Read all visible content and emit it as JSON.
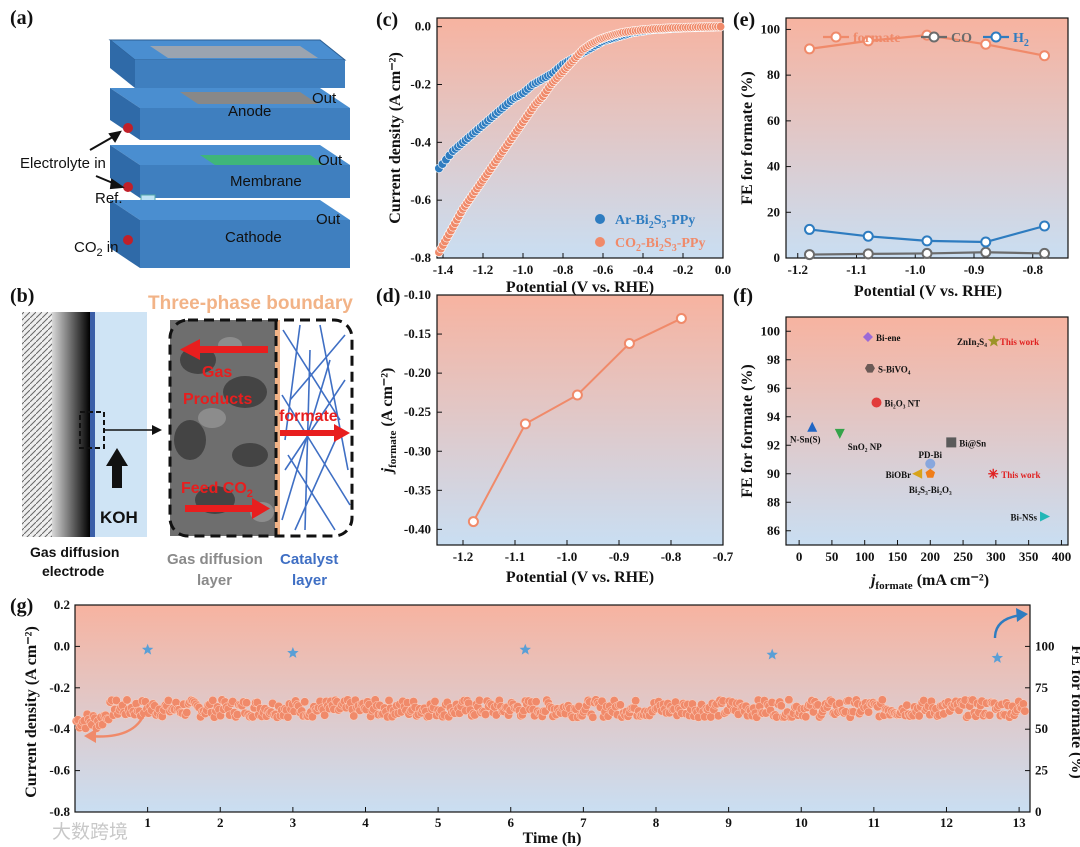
{
  "panel_labels": {
    "a": "(a)",
    "b": "(b)",
    "c": "(c)",
    "d": "(d)",
    "e": "(e)",
    "f": "(f)",
    "g": "(g)"
  },
  "schematic_a": {
    "anode": "Anode",
    "membrane": "Membrane",
    "cathode": "Cathode",
    "out1": "Out",
    "out2": "Out",
    "out3": "Out",
    "electrolyte_in": "Electrolyte in",
    "ref": "Ref.",
    "co2_in_main": "CO",
    "co2_in_sub": "2",
    "co2_in_tail": " in"
  },
  "schematic_b": {
    "title": "Three-phase boundary",
    "gas_products_1": "Gas",
    "gas_products_2": "Products",
    "formate": "formate",
    "feed_co2": "Feed CO",
    "feed_co2_sub": "2",
    "koh": "KOH",
    "gde_1": "Gas diffusion",
    "gde_2": "electrode",
    "gdl_1": "Gas diffusion",
    "gdl_2": "layer",
    "cat_1": "Catalyst",
    "cat_2": "layer"
  },
  "colors": {
    "blue_series": "#2e7cc0",
    "orange_series": "#f08a6a",
    "bg_top": "#f7b3a0",
    "bg_bottom": "#c9def2"
  },
  "chart_data": [
    {
      "id": "c",
      "type": "scatter",
      "xlabel": "Potential (V vs. RHE)",
      "ylabel": "Current density (A cm⁻²)",
      "xlim": [
        -1.43,
        0.0
      ],
      "ylim": [
        -0.8,
        0.03
      ],
      "xticks": [
        "-1.4",
        "-1.2",
        "-1.0",
        "-0.8",
        "-0.6",
        "-0.4",
        "-0.2",
        "0.0"
      ],
      "yticks": [
        "0.0",
        "-0.2",
        "-0.4",
        "-0.6",
        "-0.8"
      ],
      "series": [
        {
          "name": "Ar-Bi2S3-PPy",
          "label_main": "Ar-Bi",
          "label_s1": "2",
          "label_mid": "S",
          "label_s2": "3",
          "label_tail": "-PPy",
          "color": "#2e7cc0",
          "x": [
            -1.42,
            -1.35,
            -1.3,
            -1.25,
            -1.2,
            -1.15,
            -1.1,
            -1.05,
            -1.0,
            -0.95,
            -0.9,
            -0.85,
            -0.8,
            -0.75,
            -0.7,
            -0.65,
            -0.6,
            -0.55,
            -0.5,
            -0.45,
            -0.4,
            -0.35,
            -0.3,
            -0.25,
            -0.2,
            -0.15,
            -0.1,
            -0.05,
            0.0
          ],
          "y": [
            -0.49,
            -0.43,
            -0.4,
            -0.37,
            -0.34,
            -0.31,
            -0.28,
            -0.25,
            -0.23,
            -0.2,
            -0.18,
            -0.16,
            -0.13,
            -0.11,
            -0.09,
            -0.07,
            -0.05,
            -0.04,
            -0.03,
            -0.02,
            -0.015,
            -0.01,
            -0.008,
            -0.006,
            -0.004,
            -0.003,
            -0.002,
            -0.001,
            0.0
          ]
        },
        {
          "name": "CO2-Bi2S3-PPy",
          "label_main": "CO",
          "label_s0": "2",
          "label_mid0": "-Bi",
          "label_s1": "2",
          "label_mid": "S",
          "label_s2": "3",
          "label_tail": "-PPy",
          "color": "#f08a6a",
          "x": [
            -1.42,
            -1.38,
            -1.34,
            -1.3,
            -1.26,
            -1.22,
            -1.18,
            -1.14,
            -1.1,
            -1.06,
            -1.02,
            -0.98,
            -0.94,
            -0.9,
            -0.86,
            -0.82,
            -0.78,
            -0.74,
            -0.7,
            -0.66,
            -0.62,
            -0.58,
            -0.54,
            -0.5,
            -0.45,
            -0.4,
            -0.35,
            -0.3,
            -0.25,
            -0.2,
            -0.15,
            -0.1,
            -0.05,
            0.0
          ],
          "y": [
            -0.78,
            -0.73,
            -0.68,
            -0.63,
            -0.59,
            -0.55,
            -0.51,
            -0.47,
            -0.43,
            -0.39,
            -0.35,
            -0.31,
            -0.27,
            -0.24,
            -0.2,
            -0.17,
            -0.14,
            -0.11,
            -0.08,
            -0.06,
            -0.045,
            -0.035,
            -0.027,
            -0.02,
            -0.015,
            -0.011,
            -0.008,
            -0.006,
            -0.004,
            -0.003,
            -0.002,
            -0.001,
            0.0,
            0.0
          ]
        }
      ]
    },
    {
      "id": "d",
      "type": "line",
      "xlabel": "Potential (V vs. RHE)",
      "ylabel_main": "j",
      "ylabel_sub": "formate",
      "ylabel_tail": " (A cm⁻²)",
      "xlim": [
        -1.25,
        -0.7
      ],
      "ylim": [
        -0.42,
        -0.1
      ],
      "xticks": [
        "-1.2",
        "-1.1",
        "-1.0",
        "-0.9",
        "-0.8",
        "-0.7"
      ],
      "yticks": [
        "-0.10",
        "-0.15",
        "-0.20",
        "-0.25",
        "-0.30",
        "-0.35",
        "-0.40"
      ],
      "x": [
        -1.18,
        -1.08,
        -0.98,
        -0.88,
        -0.78
      ],
      "y": [
        -0.39,
        -0.265,
        -0.228,
        -0.162,
        -0.13
      ]
    },
    {
      "id": "e",
      "type": "line",
      "xlabel": "Potential (V vs. RHE)",
      "ylabel": "FE for formate (%)",
      "xlim": [
        -1.22,
        -0.74
      ],
      "ylim": [
        0,
        105
      ],
      "xticks": [
        "-1.2",
        "-1.1",
        "-1.0",
        "-0.9",
        "-0.8"
      ],
      "yticks": [
        "0",
        "20",
        "40",
        "60",
        "80",
        "100"
      ],
      "x": [
        -1.18,
        -1.08,
        -0.98,
        -0.88,
        -0.78
      ],
      "series": [
        {
          "name": "formate",
          "color": "#f08a6a",
          "values": [
            91.5,
            95,
            97.5,
            93.5,
            88.5
          ]
        },
        {
          "name": "CO",
          "color": "#6b6b6b",
          "values": [
            1.5,
            1.8,
            2.0,
            2.5,
            2.0
          ]
        },
        {
          "name": "H2",
          "label_main": "H",
          "label_sub": "2",
          "color": "#2e7cc0",
          "values": [
            12.5,
            9.5,
            7.5,
            7.0,
            14.0
          ]
        }
      ]
    },
    {
      "id": "f",
      "type": "scatter",
      "xlabel_main": "j",
      "xlabel_sub": "formate",
      "xlabel_tail": " (mA cm⁻²)",
      "ylabel": "FE for formate (%)",
      "xlim": [
        -20,
        410
      ],
      "ylim": [
        85,
        101
      ],
      "xticks": [
        "0",
        "50",
        "100",
        "150",
        "200",
        "250",
        "300",
        "350",
        "400"
      ],
      "yticks": [
        "86",
        "88",
        "90",
        "92",
        "94",
        "96",
        "98",
        "100"
      ],
      "points": [
        {
          "name": "Bi-ene",
          "text": "Bi-ene",
          "x": 105,
          "y": 99.6,
          "shape": "diamond",
          "color": "#9b6ad6"
        },
        {
          "name": "S-BiVO4",
          "text": "S-BiVO₄",
          "x": 108,
          "y": 97.4,
          "shape": "hexagon",
          "color": "#6b5a56"
        },
        {
          "name": "Bi2O3 NT",
          "text": "Bi₂O₃ NT",
          "x": 118,
          "y": 95.0,
          "shape": "circle",
          "color": "#e23b3b"
        },
        {
          "name": "N-Sn(S)",
          "text": "N-Sn(S)",
          "x": 20,
          "y": 93.3,
          "shape": "triangle-up",
          "color": "#2166c4"
        },
        {
          "name": "SnO2 NP",
          "text": "SnO₂ NP",
          "x": 62,
          "y": 92.8,
          "shape": "triangle-down",
          "color": "#35a34a"
        },
        {
          "name": "Bi@Sn",
          "text": "Bi@Sn",
          "x": 232,
          "y": 92.2,
          "shape": "square",
          "color": "#5b5b5b"
        },
        {
          "name": "PD-Bi",
          "text": "PD-Bi",
          "x": 200,
          "y": 90.7,
          "shape": "circle",
          "color": "#88a7dd"
        },
        {
          "name": "BiOBr",
          "text": "BiOBr",
          "x": 180,
          "y": 90.0,
          "shape": "triangle-left",
          "color": "#d8a31a"
        },
        {
          "name": "Bi2S3-Bi2O3",
          "text": "Bi₂S₃-Bi₂O₃",
          "x": 200,
          "y": 90.0,
          "shape": "pentagon",
          "color": "#f07d18"
        },
        {
          "name": "ZnIn2S4",
          "text": "ZnIn₂S₄",
          "x": 297,
          "y": 99.3,
          "shape": "star",
          "color": "#9c9428"
        },
        {
          "name": "This work (star)",
          "text": "This work",
          "x": 297,
          "y": 99.3,
          "shape": "none",
          "color": "#e02020"
        },
        {
          "name": "This work (asterisk)",
          "text": "This work",
          "x": 296,
          "y": 90.0,
          "shape": "asterisk",
          "color": "#e02020"
        },
        {
          "name": "Bi-NSs",
          "text": "Bi-NSs",
          "x": 375,
          "y": 87.0,
          "shape": "triangle-right",
          "color": "#22b7b7"
        }
      ]
    },
    {
      "id": "g",
      "type": "scatter",
      "xlabel": "Time (h)",
      "ylabel_left": "Current density (A cm⁻²)",
      "ylabel_right": "FE for formate (%)",
      "xlim": [
        0,
        13.15
      ],
      "ylim_left": [
        -0.8,
        0.2
      ],
      "ylim_right": [
        0,
        125
      ],
      "xticks": [
        "1",
        "2",
        "3",
        "4",
        "5",
        "6",
        "7",
        "8",
        "9",
        "10",
        "11",
        "12",
        "13"
      ],
      "yticks_left": [
        "0.2",
        "0.0",
        "-0.2",
        "-0.4",
        "-0.6",
        "-0.8"
      ],
      "yticks_right": [
        "0",
        "25",
        "50",
        "75",
        "100"
      ],
      "current_mean": -0.3,
      "current_start": -0.36,
      "fe_x": [
        1.0,
        3.0,
        6.2,
        9.6,
        12.7
      ],
      "fe_y": [
        98,
        96,
        98,
        95,
        93
      ]
    }
  ],
  "watermark": "大数跨境"
}
